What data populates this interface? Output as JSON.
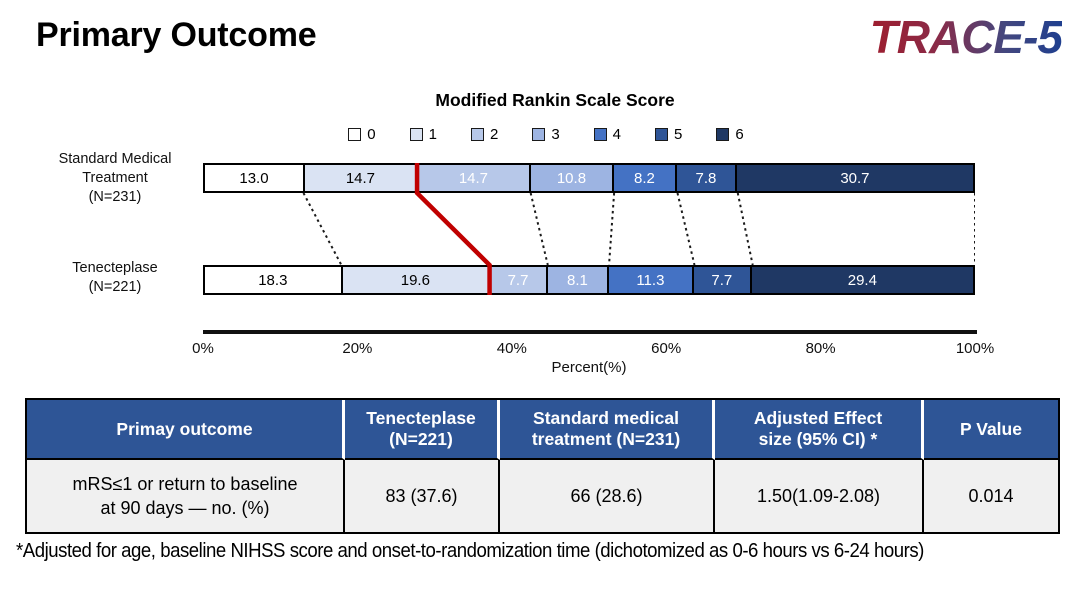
{
  "page_title": "Primary Outcome",
  "logo": {
    "text": "TRACE-5"
  },
  "chart_data": {
    "type": "bar",
    "stacked": true,
    "orientation": "horizontal",
    "title": "Modified Rankin Scale Score",
    "xlabel": "Percent(%)",
    "xlim": [
      0,
      100
    ],
    "x_ticks": [
      "0%",
      "20%",
      "40%",
      "60%",
      "80%",
      "100%"
    ],
    "grid": false,
    "legend": {
      "position": "top",
      "entries": [
        "0",
        "1",
        "2",
        "3",
        "4",
        "5",
        "6"
      ]
    },
    "segment_colors": [
      "#FFFFFF",
      "#DAE3F3",
      "#B7C8E9",
      "#9DB4E2",
      "#4472C4",
      "#2F5597",
      "#1F3864"
    ],
    "segment_label_colors": [
      "#000000",
      "#000000",
      "#FFFFFF",
      "#FFFFFF",
      "#FFFFFF",
      "#FFFFFF",
      "#FFFFFF"
    ],
    "categories": [
      "Standard Medical Treatment (N=231)",
      "Tenecteplase (N=221)"
    ],
    "series": [
      {
        "name": "Standard Medical Treatment (N=231)",
        "label_lines": "Standard Medical\nTreatment\n(N=231)",
        "values": [
          13.0,
          14.7,
          14.7,
          10.8,
          8.2,
          7.8,
          30.7
        ]
      },
      {
        "name": "Tenecteplase (N=221)",
        "label_lines": "Tenecteplase\n(N=221)",
        "values": [
          18.3,
          19.6,
          7.7,
          8.1,
          11.3,
          7.7,
          29.4
        ]
      }
    ],
    "divider": {
      "after_segment_index": 1,
      "color": "#C00000",
      "meaning": "mRS 0-1 vs 2-6 boundary"
    },
    "connector_color": "#1a1a1a"
  },
  "table": {
    "header_bg": "#2E5596",
    "body_bg": "#F0F0F0",
    "headers": [
      "Primay outcome",
      "Tenecteplase\n(N=221)",
      "Standard medical\ntreatment (N=231)",
      "Adjusted Effect\nsize (95% CI) *",
      "P Value"
    ],
    "rows": [
      [
        "mRS≤1 or  return to baseline\nat 90 days — no. (%)",
        "83 (37.6)",
        "66 (28.6)",
        "1.50(1.09-2.08)",
        "0.014"
      ]
    ]
  },
  "footnote": "*Adjusted for age, baseline NIHSS score and onset-to-randomization time (dichotomized as 0-6 hours vs 6-24 hours)"
}
